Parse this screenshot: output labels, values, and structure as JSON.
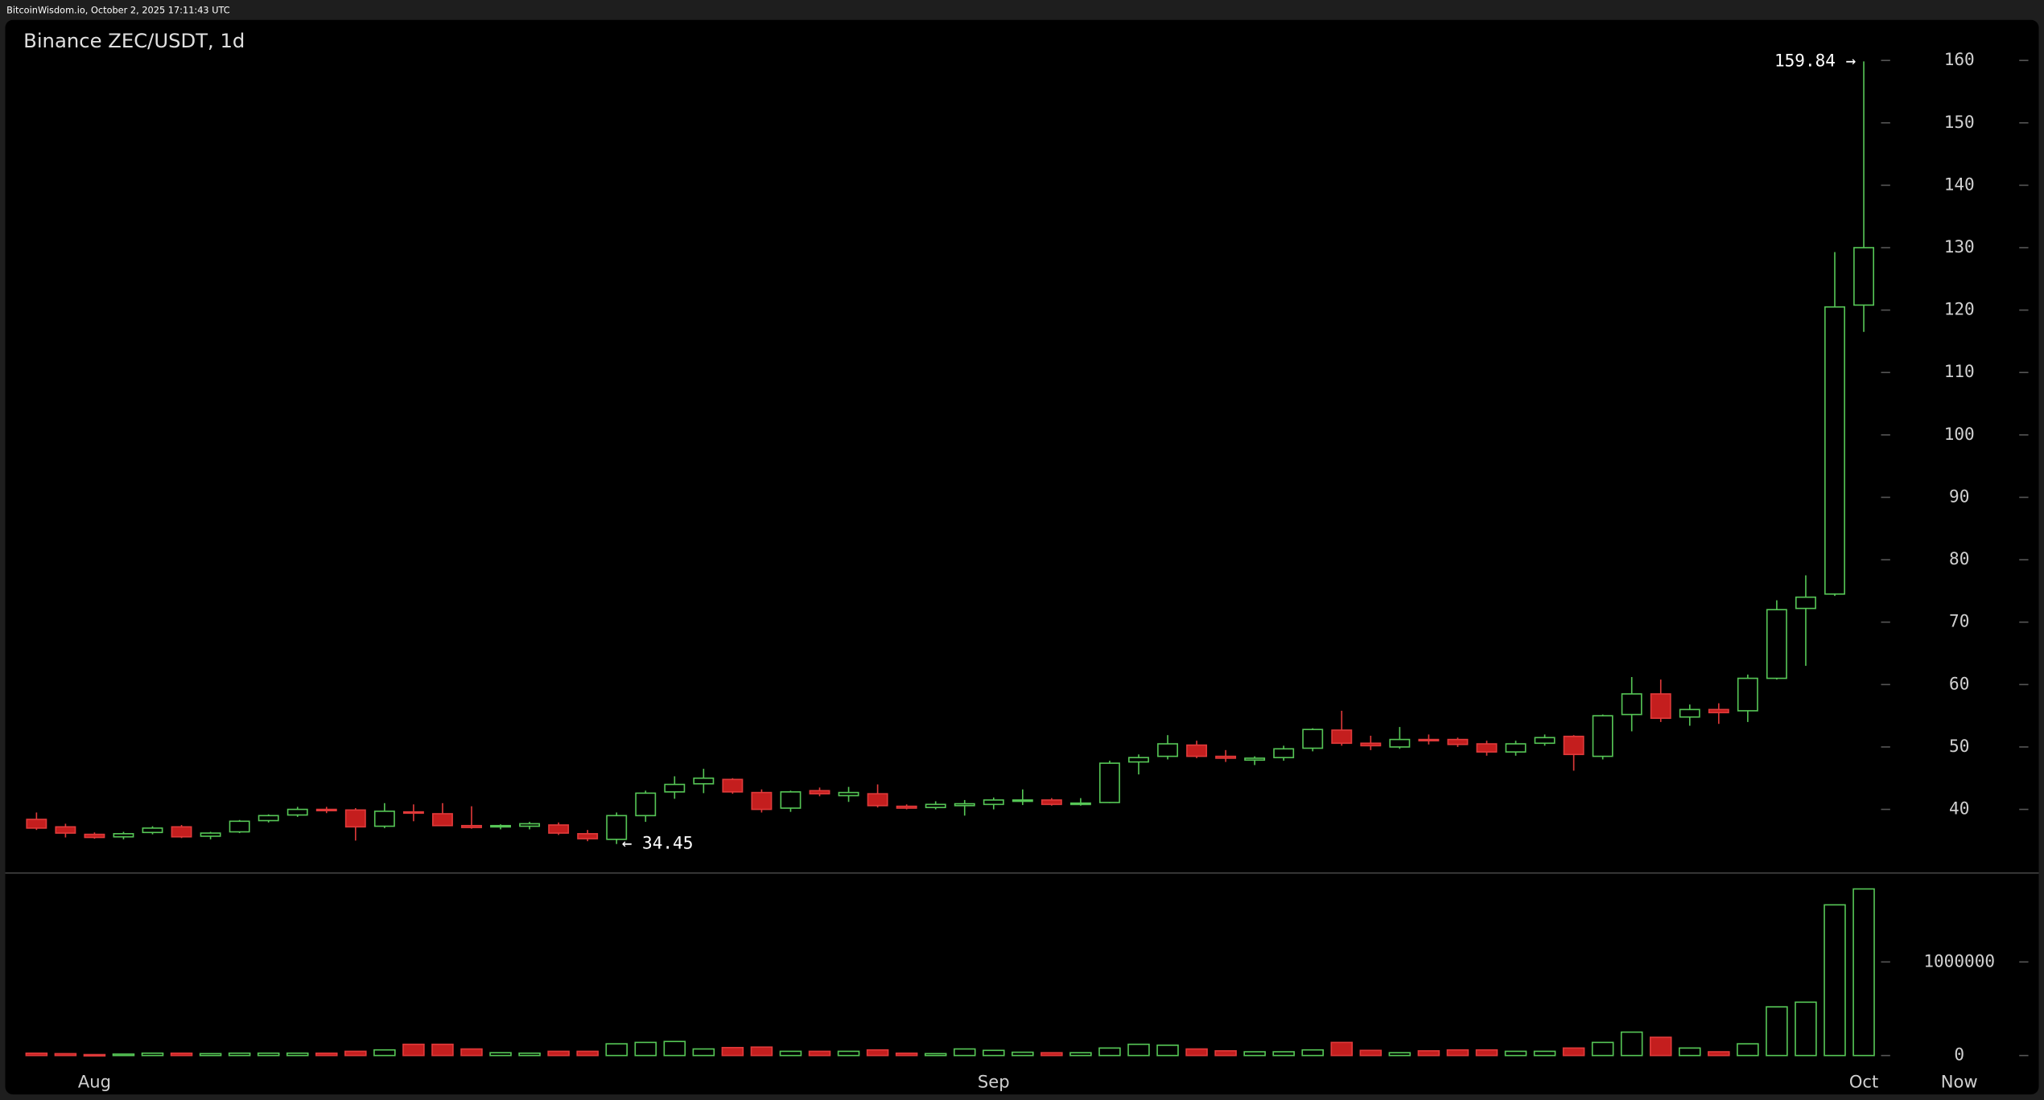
{
  "header": {
    "source": "BitcoinWisdom.io, October 2, 2025 17:11:43 UTC"
  },
  "chart_data": {
    "type": "candlestick",
    "title": "Binance ZEC/USDT, 1d",
    "categories": [
      null,
      null,
      "Aug",
      null,
      null,
      null,
      null,
      null,
      null,
      null,
      null,
      null,
      null,
      null,
      null,
      null,
      null,
      null,
      null,
      null,
      null,
      null,
      null,
      null,
      null,
      null,
      null,
      null,
      null,
      null,
      null,
      null,
      null,
      "Sep",
      null,
      null,
      null,
      null,
      null,
      null,
      null,
      null,
      null,
      null,
      null,
      null,
      null,
      null,
      null,
      null,
      null,
      null,
      null,
      null,
      null,
      null,
      null,
      null,
      null,
      null,
      null,
      null,
      null,
      "Oct"
    ],
    "end_label": "Now",
    "open": [
      38.4,
      37.2,
      36.0,
      35.6,
      36.3,
      37.2,
      35.7,
      36.4,
      38.2,
      39.1,
      40.0,
      39.9,
      37.3,
      39.6,
      39.3,
      37.4,
      37.2,
      37.3,
      37.5,
      36.1,
      35.2,
      39.0,
      42.8,
      44.1,
      44.8,
      42.7,
      40.2,
      43.0,
      42.2,
      42.5,
      40.5,
      40.3,
      40.6,
      40.8,
      41.3,
      41.5,
      40.9,
      41.1,
      47.6,
      48.5,
      50.3,
      48.5,
      47.9,
      48.3,
      49.8,
      52.7,
      50.6,
      50.0,
      51.2,
      51.2,
      50.5,
      49.2,
      50.6,
      51.7,
      48.5,
      55.2,
      58.5,
      54.8,
      56.0,
      55.8,
      61.0,
      72.2,
      74.5,
      120.8
    ],
    "high": [
      39.5,
      37.7,
      36.3,
      36.4,
      37.3,
      37.5,
      36.4,
      38.3,
      39.2,
      40.4,
      40.4,
      40.2,
      41.0,
      40.8,
      41.0,
      40.5,
      37.6,
      38.0,
      37.9,
      36.7,
      39.5,
      43.0,
      45.3,
      46.5,
      45.0,
      43.2,
      43.0,
      43.5,
      43.6,
      44.0,
      40.8,
      41.3,
      41.5,
      41.9,
      43.2,
      41.8,
      41.8,
      47.8,
      48.8,
      51.9,
      51.0,
      49.5,
      48.5,
      50.2,
      53.0,
      55.8,
      51.8,
      53.2,
      52.0,
      51.5,
      51.0,
      51.0,
      52.0,
      51.9,
      55.2,
      61.2,
      60.8,
      56.8,
      57.0,
      61.6,
      73.5,
      77.5,
      129.3,
      159.84
    ],
    "low": [
      36.7,
      35.5,
      35.3,
      35.2,
      36.0,
      35.4,
      35.2,
      36.2,
      37.9,
      38.8,
      39.4,
      35.0,
      37.0,
      38.1,
      37.3,
      36.9,
      36.8,
      36.8,
      35.9,
      34.9,
      34.45,
      38.0,
      41.7,
      42.6,
      42.5,
      39.5,
      39.6,
      42.1,
      41.2,
      40.3,
      40.0,
      40.0,
      39.0,
      40.0,
      40.7,
      40.6,
      40.6,
      41.0,
      45.6,
      48.0,
      48.2,
      47.6,
      47.1,
      47.8,
      49.3,
      50.2,
      49.5,
      49.7,
      50.4,
      50.0,
      48.6,
      48.6,
      50.2,
      46.2,
      48.0,
      52.5,
      54.0,
      53.4,
      53.7,
      54.0,
      60.8,
      63.0,
      74.2,
      116.5
    ],
    "close": [
      37.0,
      36.2,
      35.5,
      36.1,
      37.0,
      35.6,
      36.2,
      38.1,
      39.0,
      40.0,
      39.8,
      37.2,
      39.7,
      39.5,
      37.4,
      37.1,
      37.4,
      37.7,
      36.2,
      35.3,
      39.0,
      42.6,
      44.0,
      45.0,
      42.8,
      40.0,
      42.8,
      42.5,
      42.7,
      40.6,
      40.2,
      40.8,
      40.9,
      41.5,
      41.5,
      40.8,
      41.0,
      47.4,
      48.3,
      50.5,
      48.5,
      48.2,
      48.2,
      49.7,
      52.8,
      50.6,
      50.2,
      51.2,
      51.0,
      50.4,
      49.2,
      50.5,
      51.5,
      48.8,
      55.0,
      58.5,
      54.6,
      56.0,
      55.5,
      61.0,
      72.0,
      74.0,
      120.5,
      130.0
    ],
    "volume": [
      25000,
      20000,
      10000,
      15000,
      25000,
      25000,
      20000,
      25000,
      25000,
      25000,
      25000,
      45000,
      60000,
      120000,
      120000,
      70000,
      30000,
      25000,
      45000,
      45000,
      125000,
      140000,
      150000,
      70000,
      85000,
      90000,
      45000,
      45000,
      45000,
      60000,
      25000,
      20000,
      70000,
      55000,
      35000,
      30000,
      30000,
      80000,
      120000,
      110000,
      70000,
      50000,
      40000,
      40000,
      60000,
      140000,
      55000,
      30000,
      50000,
      60000,
      60000,
      45000,
      45000,
      80000,
      140000,
      250000,
      195000,
      80000,
      40000,
      125000,
      520000,
      570000,
      1610000,
      1780000
    ],
    "ylim": [
      29.8,
      166.5
    ],
    "yticks": [
      40,
      50,
      60,
      70,
      80,
      90,
      100,
      110,
      120,
      130,
      140,
      150,
      160
    ],
    "volume_ylim": [
      -110000,
      1950000
    ],
    "volume_yticks": [
      0,
      1000000
    ],
    "max_label": "159.84 →",
    "min_label": "← 34.45",
    "up_color": "#56c656",
    "down_color": "#c41e1e"
  }
}
